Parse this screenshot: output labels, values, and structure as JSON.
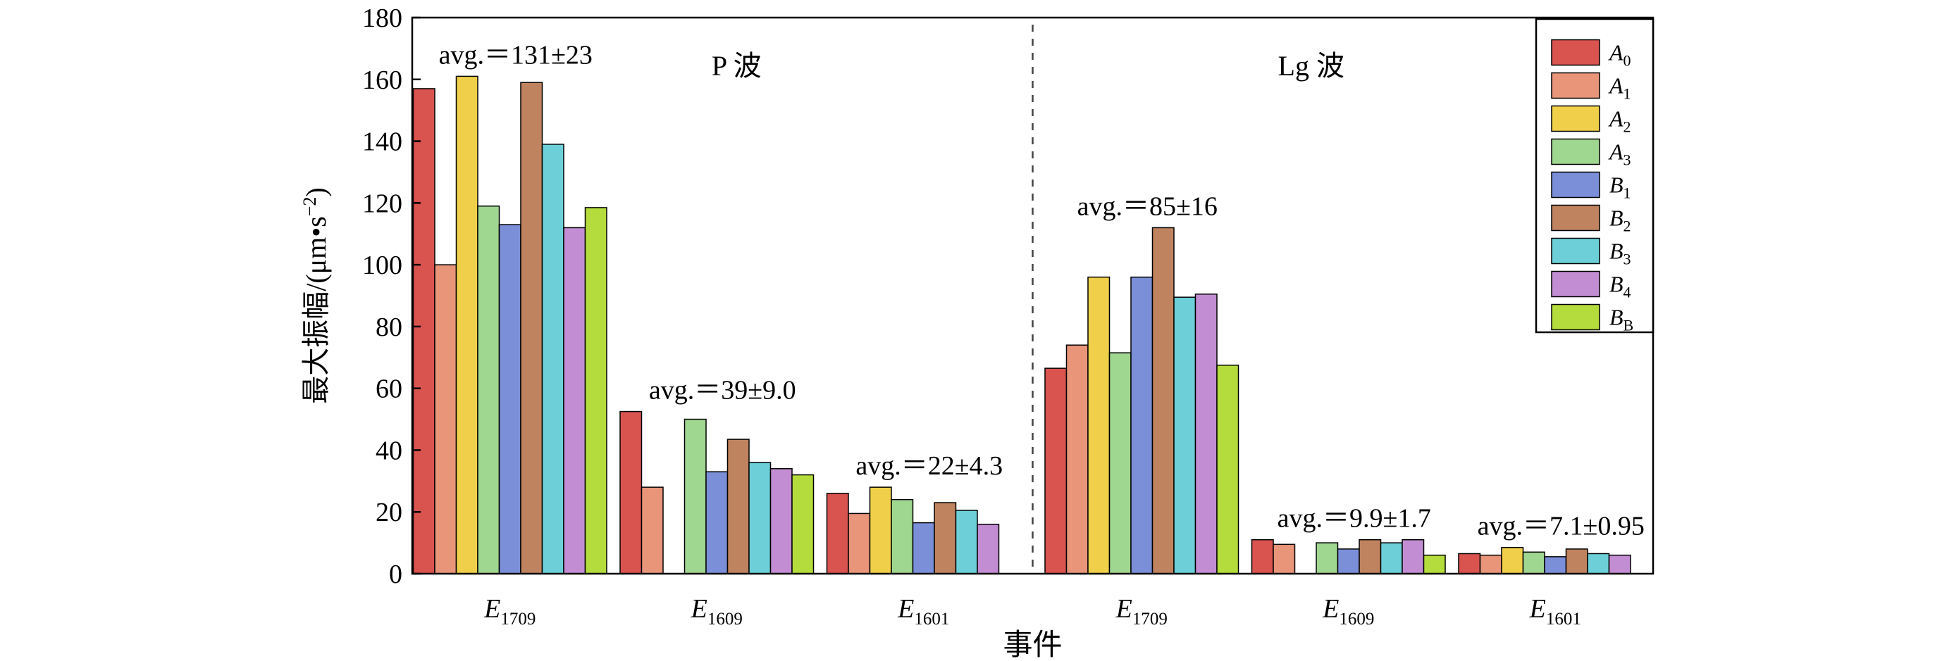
{
  "chart_data": {
    "type": "bar",
    "ylabel_main": "最大振幅/",
    "ylabel_unit": "(μm•s",
    "ylabel_exp": "−2",
    "ylabel_close": ")",
    "xlabel": "事件",
    "ylim": [
      0,
      180
    ],
    "yticks": [
      0,
      20,
      40,
      60,
      80,
      100,
      120,
      140,
      160,
      180
    ],
    "regions": [
      {
        "label": "P 波",
        "groups": [
          0,
          1,
          2
        ]
      },
      {
        "label": "Lg 波",
        "groups": [
          3,
          4,
          5
        ]
      }
    ],
    "categories": [
      {
        "main": "E",
        "sub": "1709"
      },
      {
        "main": "E",
        "sub": "1609"
      },
      {
        "main": "E",
        "sub": "1601"
      },
      {
        "main": "E",
        "sub": "1709"
      },
      {
        "main": "E",
        "sub": "1609"
      },
      {
        "main": "E",
        "sub": "1601"
      }
    ],
    "annotations": [
      "avg.＝131±23",
      "avg.＝39±9.0",
      "avg.＝22±4.3",
      "avg.＝85±16",
      "avg.＝9.9±1.7",
      "avg.＝7.1±0.95"
    ],
    "series": [
      {
        "name": "A",
        "sub": "0",
        "color": "#d9534f",
        "values": [
          157,
          52.5,
          26,
          66.5,
          11,
          6.5
        ]
      },
      {
        "name": "A",
        "sub": "1",
        "color": "#e8957a",
        "values": [
          100,
          28,
          19.5,
          74,
          9.5,
          6
        ]
      },
      {
        "name": "A",
        "sub": "2",
        "color": "#f0d04a",
        "values": [
          161,
          0,
          28,
          96,
          0,
          8.5
        ]
      },
      {
        "name": "A",
        "sub": "3",
        "color": "#9fd690",
        "values": [
          119,
          50,
          24,
          71.5,
          10,
          7
        ]
      },
      {
        "name": "B",
        "sub": "1",
        "color": "#7b8fd8",
        "values": [
          113,
          33,
          16.5,
          96,
          8,
          5.5
        ]
      },
      {
        "name": "B",
        "sub": "2",
        "color": "#c0835f",
        "values": [
          159,
          43.5,
          23,
          112,
          11,
          8
        ]
      },
      {
        "name": "B",
        "sub": "3",
        "color": "#6dd0d8",
        "values": [
          139,
          36,
          20.5,
          89.5,
          10,
          6.5
        ]
      },
      {
        "name": "B",
        "sub": "4",
        "color": "#c38dd3",
        "values": [
          112,
          34,
          16,
          90.5,
          11,
          6
        ]
      },
      {
        "name": "B",
        "sub": "B",
        "color": "#b4dc3c",
        "values": [
          118.5,
          32,
          0,
          67.5,
          6,
          0
        ]
      }
    ]
  }
}
